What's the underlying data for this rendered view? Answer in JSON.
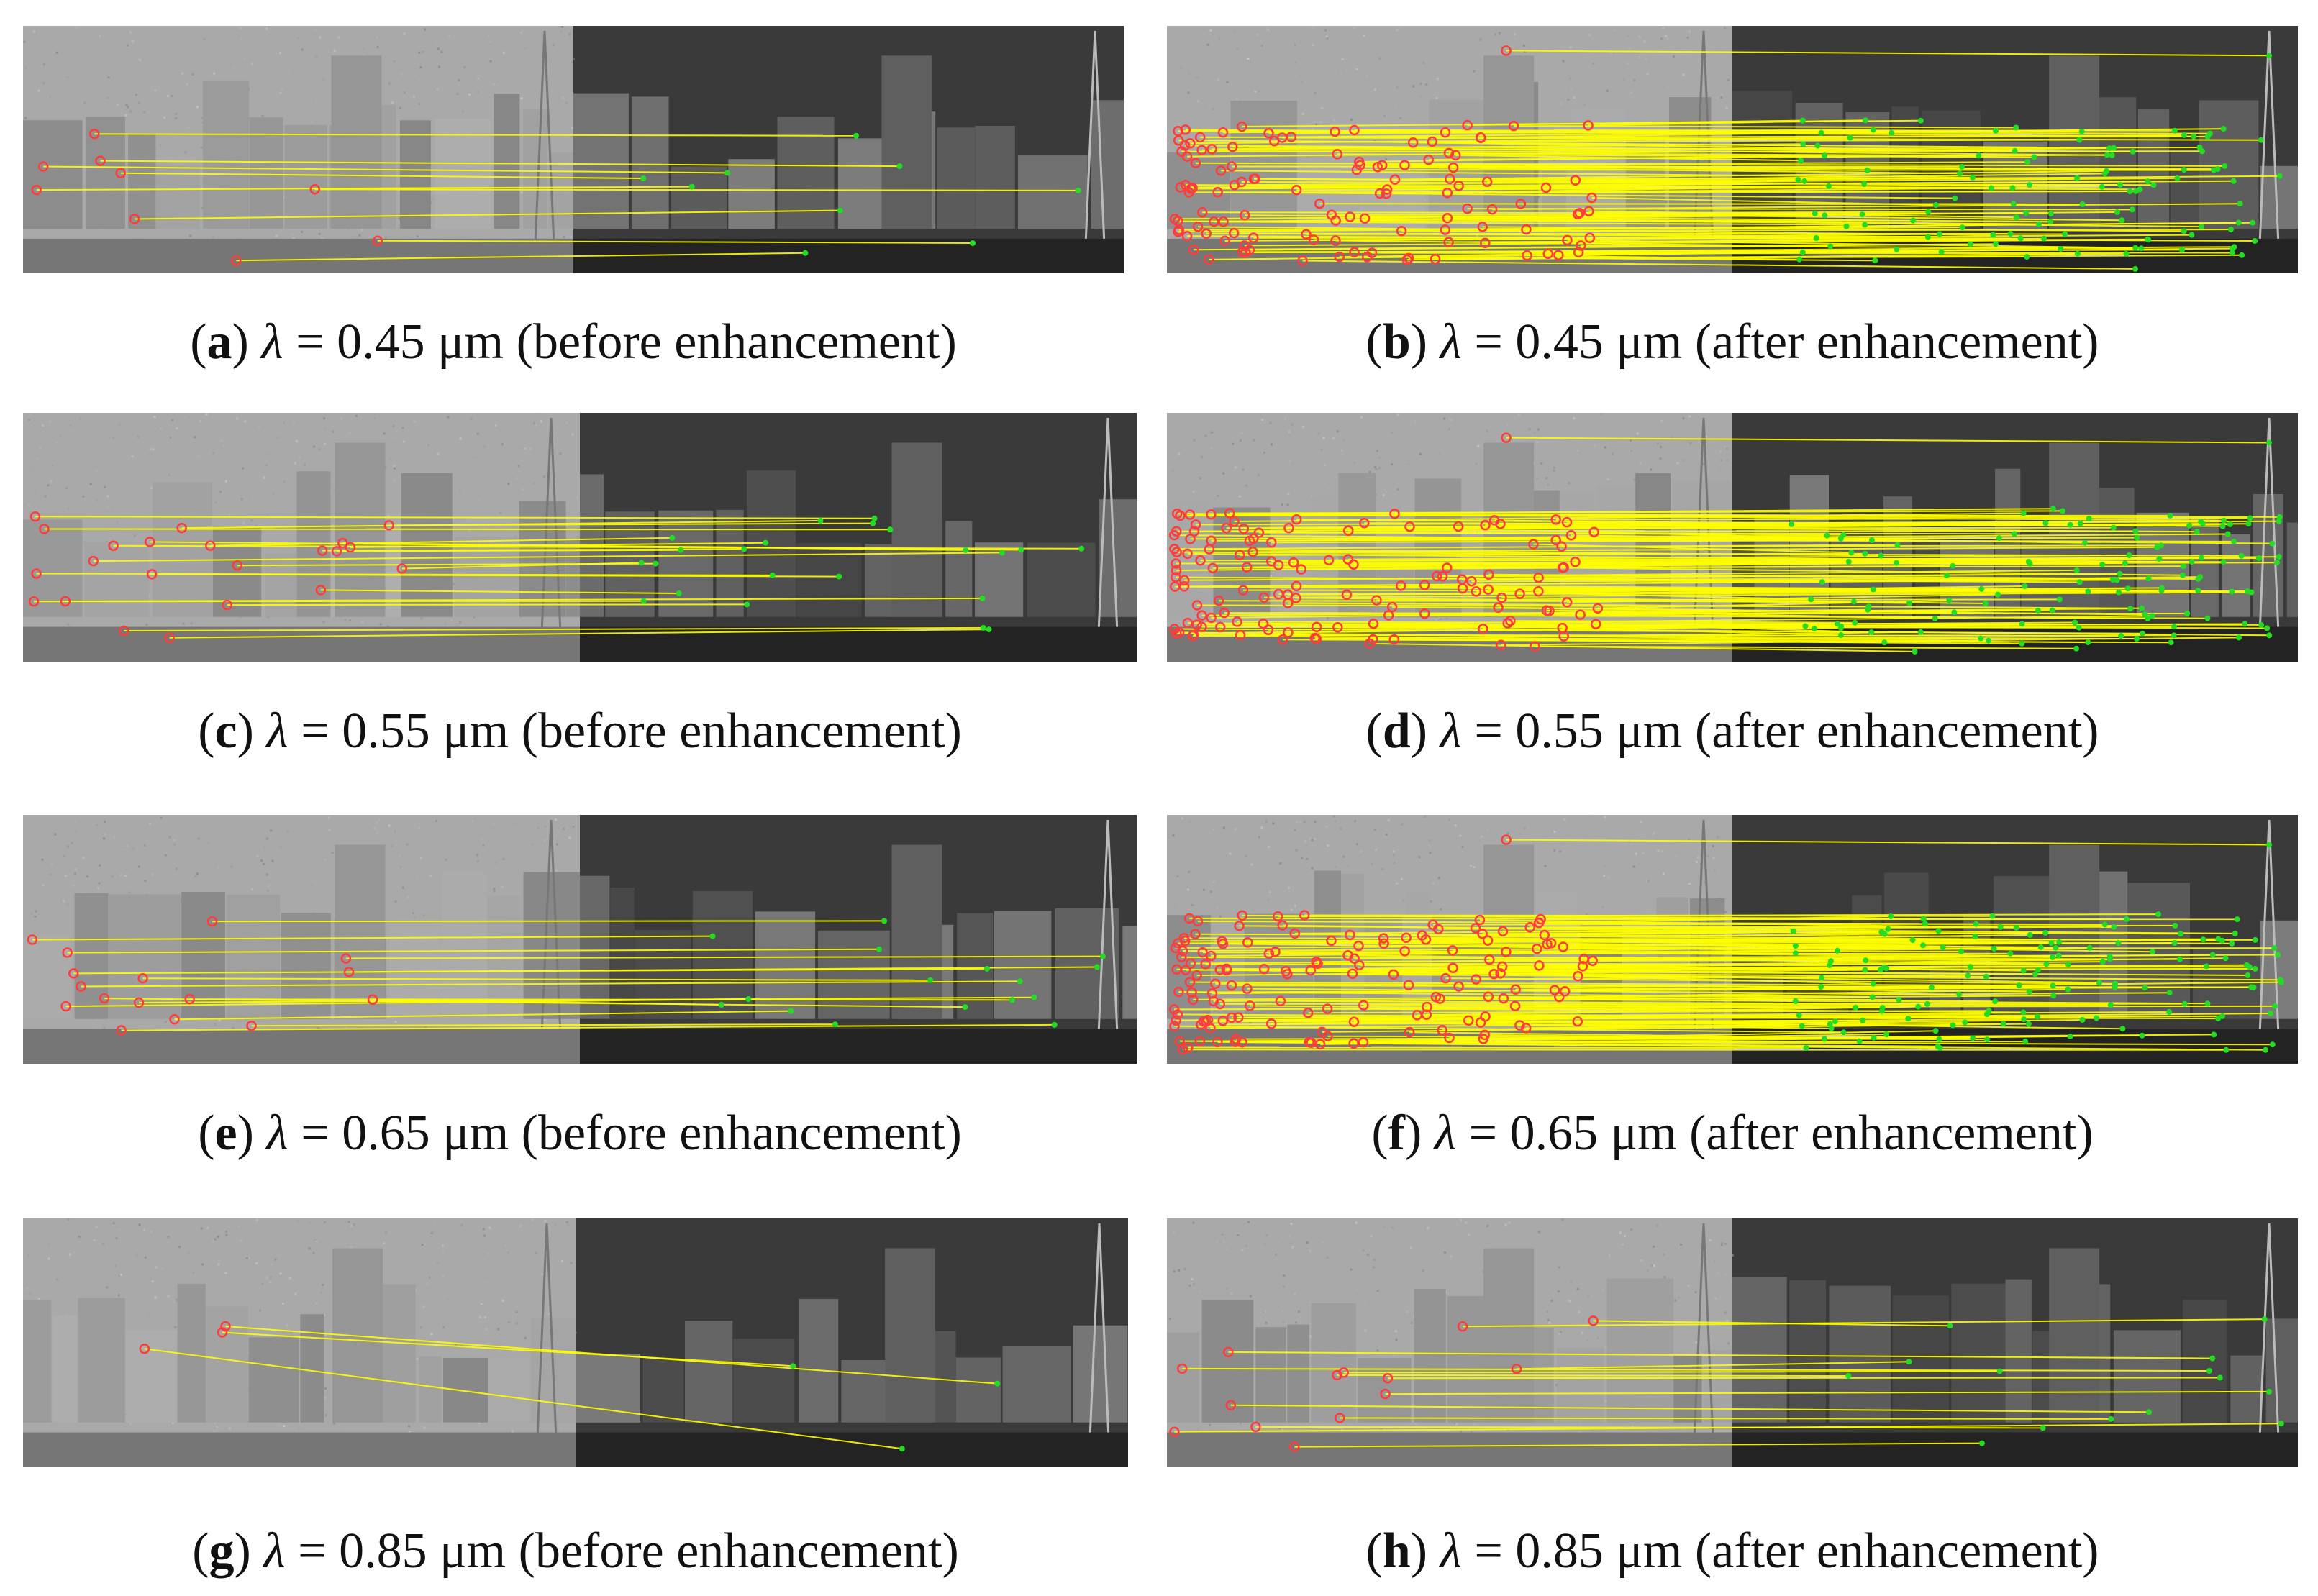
{
  "panels": [
    {
      "id": "a",
      "letter": "a",
      "lambda": "λ",
      "text": " = 0.45 μm (before enhancement)",
      "matches": 9,
      "seed": 11,
      "topLine": false
    },
    {
      "id": "b",
      "letter": "b",
      "lambda": "λ",
      "text": " = 0.45 μm (after enhancement)",
      "matches": 120,
      "seed": 23,
      "topLine": true
    },
    {
      "id": "c",
      "letter": "c",
      "lambda": "λ",
      "text": " = 0.55 μm (before enhancement)",
      "matches": 22,
      "seed": 37,
      "topLine": false
    },
    {
      "id": "d",
      "letter": "d",
      "lambda": "λ",
      "text": " = 0.55 μm (after enhancement)",
      "matches": 130,
      "seed": 41,
      "topLine": true
    },
    {
      "id": "e",
      "letter": "e",
      "lambda": "λ",
      "text": " = 0.65 μm (before enhancement)",
      "matches": 16,
      "seed": 53,
      "topLine": false
    },
    {
      "id": "f",
      "letter": "f",
      "lambda": "λ",
      "text": " = 0.65 μm (after enhancement)",
      "matches": 150,
      "seed": 67,
      "topLine": true
    },
    {
      "id": "g",
      "letter": "g",
      "lambda": "λ",
      "text": " = 0.85 μm (before enhancement)",
      "matches": 3,
      "seed": 71,
      "topLine": false
    },
    {
      "id": "h",
      "letter": "h",
      "lambda": "λ",
      "text": " = 0.85 μm (after enhancement)",
      "matches": 14,
      "seed": 83,
      "topLine": false
    }
  ],
  "colors": {
    "match_line": "#ffff00",
    "left_keypoint": "#ff3b3b",
    "right_keypoint": "#22dd22",
    "left_image_bg": "#a9a9a9",
    "right_image_bg": "#3a3a3a"
  }
}
